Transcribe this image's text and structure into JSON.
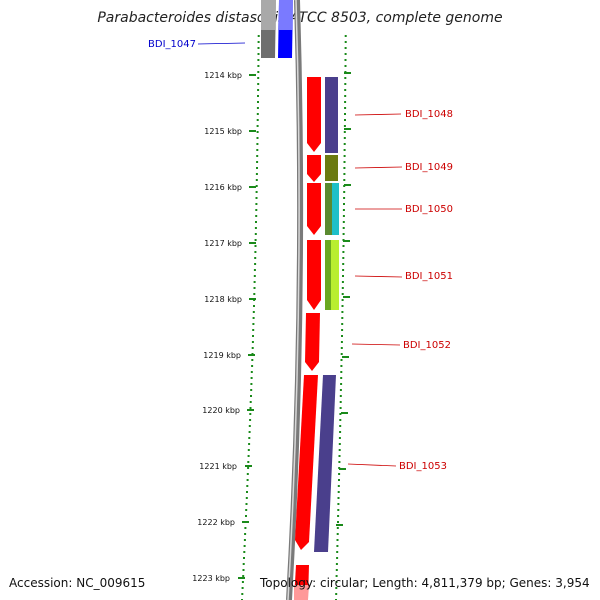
{
  "title": "Parabacteroides distasonis ATCC 8503, complete genome",
  "accession": "Accession: NC_009615",
  "summary": "Topology: circular; Length: 4,811,379 bp; Genes: 3,954",
  "ticks": [
    "1214 kbp",
    "1215 kbp",
    "1216 kbp",
    "1217 kbp",
    "1218 kbp",
    "1219 kbp",
    "1220 kbp",
    "1221 kbp",
    "1222 kbp",
    "1223 kbp"
  ],
  "genes": [
    {
      "label": "BDI_1047",
      "color": "#0000cc"
    },
    {
      "label": "BDI_1048",
      "color": "#cc0000"
    },
    {
      "label": "BDI_1049",
      "color": "#cc0000"
    },
    {
      "label": "BDI_1050",
      "color": "#cc0000"
    },
    {
      "label": "BDI_1051",
      "color": "#cc0000"
    },
    {
      "label": "BDI_1052",
      "color": "#cc0000"
    },
    {
      "label": "BDI_1053",
      "color": "#cc0000"
    }
  ],
  "colors": {
    "backbone": "#7a7a7a",
    "forward": "#ff0000",
    "cog_purple": "#4a3f8c",
    "cog_olive": "#6b7a10",
    "cog_teal": "#1fa8b0",
    "cog_lime": "#8ccf1a",
    "cog_blue": "#0000ff",
    "cog_gray": "#707070",
    "dots": "#1a8a1a"
  }
}
